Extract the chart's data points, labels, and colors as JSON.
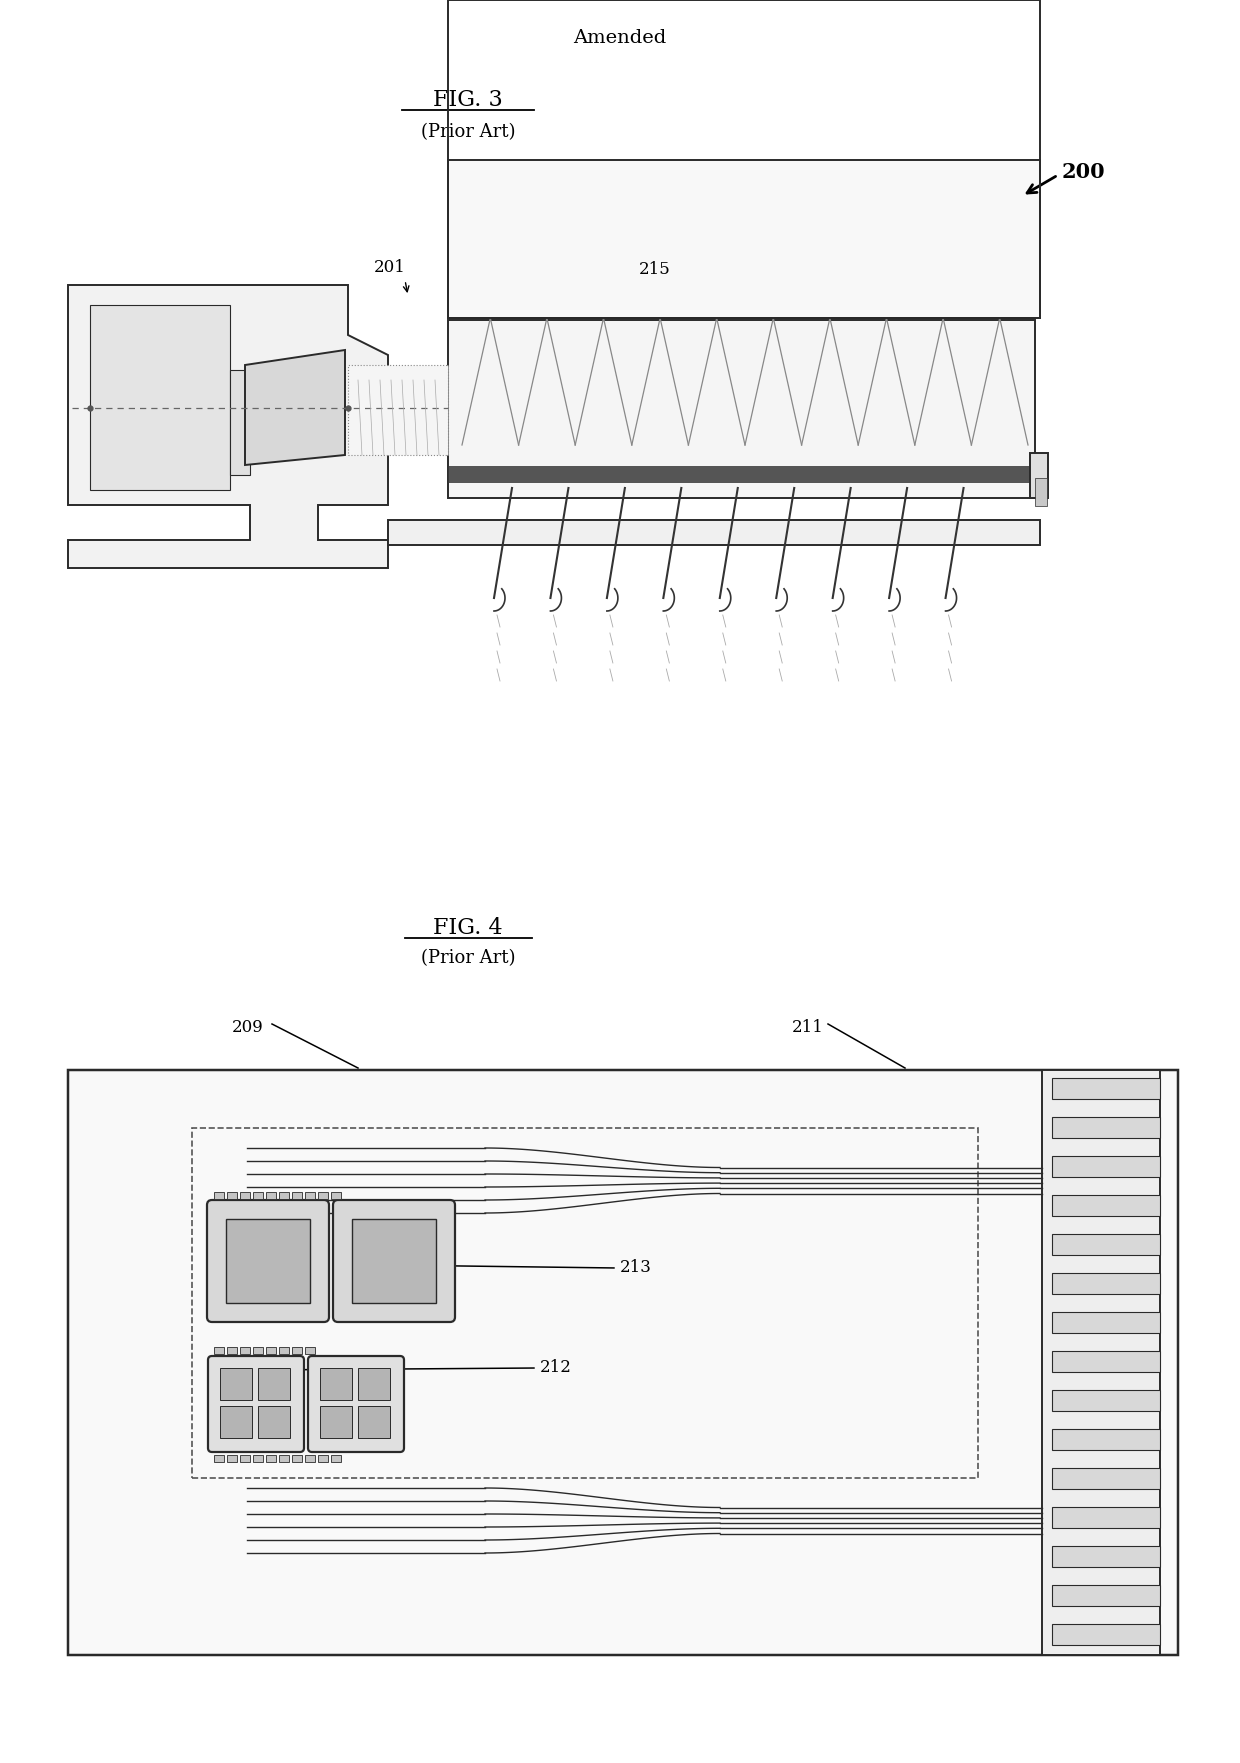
{
  "bg_color": "#ffffff",
  "fig_width": 12.4,
  "fig_height": 17.63,
  "title_text": "Amended",
  "fig3_title": "FIG. 3",
  "fig3_subtitle": "(Prior Art)",
  "fig3_label_200": "200",
  "fig3_ref201": "201",
  "fig3_ref215": "215",
  "fig4_title": "FIG. 4",
  "fig4_subtitle": "(Prior Art)",
  "fig4_ref209": "209",
  "fig4_ref211": "211",
  "fig4_ref213": "213",
  "fig4_ref212": "212",
  "lc": "#2a2a2a",
  "lw": 1.4,
  "tlw": 0.8,
  "tc": "#000000"
}
